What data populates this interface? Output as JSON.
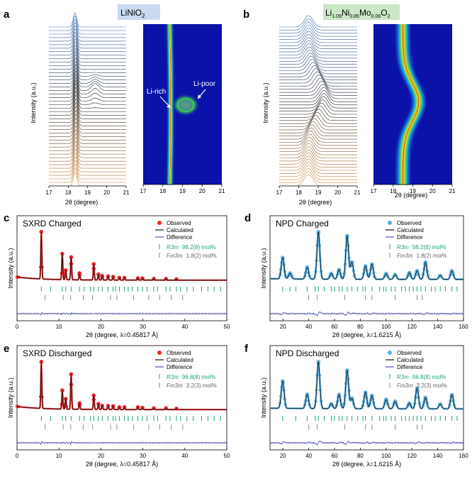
{
  "panel_labels": {
    "a": "a",
    "b": "b",
    "c": "c",
    "d": "d",
    "e": "e",
    "f": "f"
  },
  "top": {
    "a": {
      "compound": {
        "base": "LiNiO",
        "sub": "2"
      },
      "ylabel": "Intensity (a.u.)",
      "xlabel": "2θ (degree)",
      "xticks": [
        "17",
        "18",
        "19",
        "20",
        "21"
      ],
      "map_xticks": [
        "17",
        "18",
        "19",
        "20",
        "21"
      ],
      "li_rich": "Li-rich",
      "li_poor": "Li-poor"
    },
    "b": {
      "compound": {
        "p1": "Li",
        "s1": "1.09",
        "p2": "Ni",
        "s2": "0.85",
        "p3": "Mo",
        "s3": "0.06",
        "p4": "O",
        "s4": "2"
      },
      "ylabel": "Intensity (a.u.)",
      "xlabel": "2θ (degree)",
      "xticks": [
        "17",
        "18",
        "19",
        "20",
        "21"
      ],
      "map_xticks": [
        "17",
        "18",
        "19",
        "20",
        "21"
      ],
      "map_xlabel": "2θ (degree)"
    }
  },
  "colors": {
    "observed_sxrd": "#e8262a",
    "observed_npd": "#5aaee0",
    "calculated": "#111111",
    "difference": "#2b2bb0",
    "r3m_ticks": "#1aa37a",
    "fm3m_ticks": "#888888",
    "charge_orange": "#d58a3a",
    "charge_blue": "#3a6fb5",
    "map_background": "#0a12a8"
  },
  "chart_data": [
    {
      "panel": "c",
      "type": "line",
      "title": "SXRD  Charged",
      "xlabel": "2θ (degree, λ=0.45817 Å)",
      "ylabel": "Intensity (a.u.)",
      "xlim": [
        0,
        50
      ],
      "xticks": [
        "0",
        "10",
        "20",
        "30",
        "40",
        "50"
      ],
      "legend": [
        "Observed",
        "Calculated",
        "Difference"
      ],
      "phases": [
        {
          "label": "R3m",
          "fraction": "98.2(8) mol%"
        },
        {
          "label": "Fm3m",
          "fraction": "1.8(2) mol%"
        }
      ],
      "peaks": [
        [
          5.8,
          100
        ],
        [
          10.8,
          55
        ],
        [
          11.6,
          20
        ],
        [
          12.9,
          48
        ],
        [
          14.9,
          14
        ],
        [
          18.3,
          34
        ],
        [
          19.4,
          12
        ],
        [
          20.3,
          9
        ],
        [
          21.7,
          8
        ],
        [
          22.9,
          7
        ],
        [
          24.4,
          5
        ],
        [
          25.6,
          5
        ],
        [
          28.8,
          4
        ],
        [
          29.9,
          4
        ],
        [
          32.6,
          3
        ],
        [
          35.5,
          3
        ],
        [
          38,
          2
        ]
      ]
    },
    {
      "panel": "d",
      "type": "line",
      "title": "NPD  Charged",
      "xlabel": "2θ (degree, λ=1.6215 Å)",
      "ylabel": "Intensity (a.u.)",
      "xlim": [
        10,
        160
      ],
      "xticks": [
        "20",
        "40",
        "60",
        "80",
        "100",
        "120",
        "140",
        "160"
      ],
      "legend": [
        "Observed",
        "Calculated",
        "Difference"
      ],
      "phases": [
        {
          "label": "R3m",
          "fraction": "98.2(8) mol%"
        },
        {
          "label": "Fm3m",
          "fraction": "1.8(2) mol%"
        }
      ],
      "peaks": [
        [
          19.8,
          45
        ],
        [
          25.5,
          12
        ],
        [
          38.8,
          25
        ],
        [
          47.5,
          100
        ],
        [
          57.5,
          12
        ],
        [
          63.5,
          20
        ],
        [
          69.8,
          92
        ],
        [
          73.5,
          36
        ],
        [
          84,
          28
        ],
        [
          89,
          32
        ],
        [
          100,
          12
        ],
        [
          107,
          10
        ],
        [
          118,
          14
        ],
        [
          124,
          18
        ],
        [
          130.5,
          36
        ],
        [
          142,
          8
        ],
        [
          151,
          18
        ]
      ]
    },
    {
      "panel": "e",
      "type": "line",
      "title": "SXRD  Discharged",
      "xlabel": "2θ (degree, λ=0.45817 Å)",
      "ylabel": "Intensity (a.u.)",
      "xlim": [
        0,
        50
      ],
      "xticks": [
        "0",
        "10",
        "20",
        "30",
        "40",
        "50"
      ],
      "legend": [
        "Observed",
        "Calculated",
        "Difference"
      ],
      "phases": [
        {
          "label": "R3m",
          "fraction": "96.8(8) mol%"
        },
        {
          "label": "Fm3m",
          "fraction": "3.2(3) mol%"
        }
      ],
      "peaks": [
        [
          5.8,
          100
        ],
        [
          10.8,
          40
        ],
        [
          11.6,
          22
        ],
        [
          12.9,
          75
        ],
        [
          14.9,
          13
        ],
        [
          18.3,
          30
        ],
        [
          19.4,
          12
        ],
        [
          20.3,
          8
        ],
        [
          21.7,
          8
        ],
        [
          22.9,
          7
        ],
        [
          24.4,
          5
        ],
        [
          25.6,
          5
        ],
        [
          28.8,
          5
        ],
        [
          29.9,
          4
        ],
        [
          32.6,
          3
        ],
        [
          35.5,
          3
        ],
        [
          38,
          2
        ]
      ]
    },
    {
      "panel": "f",
      "type": "line",
      "title": "NPD  Discharged",
      "xlabel": "2θ (degree, λ=1.6215 Å)",
      "ylabel": "Intensity (a.u.)",
      "xlim": [
        10,
        160
      ],
      "xticks": [
        "20",
        "40",
        "60",
        "80",
        "100",
        "120",
        "140",
        "160"
      ],
      "legend": [
        "Observed",
        "Calculated",
        "Difference"
      ],
      "phases": [
        {
          "label": "R3m",
          "fraction": "96.8(8) mol%"
        },
        {
          "label": "Fm3m",
          "fraction": "3.2(3) mol%"
        }
      ],
      "peaks": [
        [
          19.8,
          58
        ],
        [
          38.8,
          30
        ],
        [
          47.5,
          100
        ],
        [
          57.5,
          10
        ],
        [
          63.5,
          30
        ],
        [
          69.8,
          82
        ],
        [
          73.5,
          22
        ],
        [
          84,
          35
        ],
        [
          89,
          28
        ],
        [
          100,
          20
        ],
        [
          107,
          16
        ],
        [
          118,
          12
        ],
        [
          124,
          44
        ],
        [
          130.5,
          24
        ],
        [
          142,
          10
        ],
        [
          151,
          30
        ]
      ]
    }
  ]
}
